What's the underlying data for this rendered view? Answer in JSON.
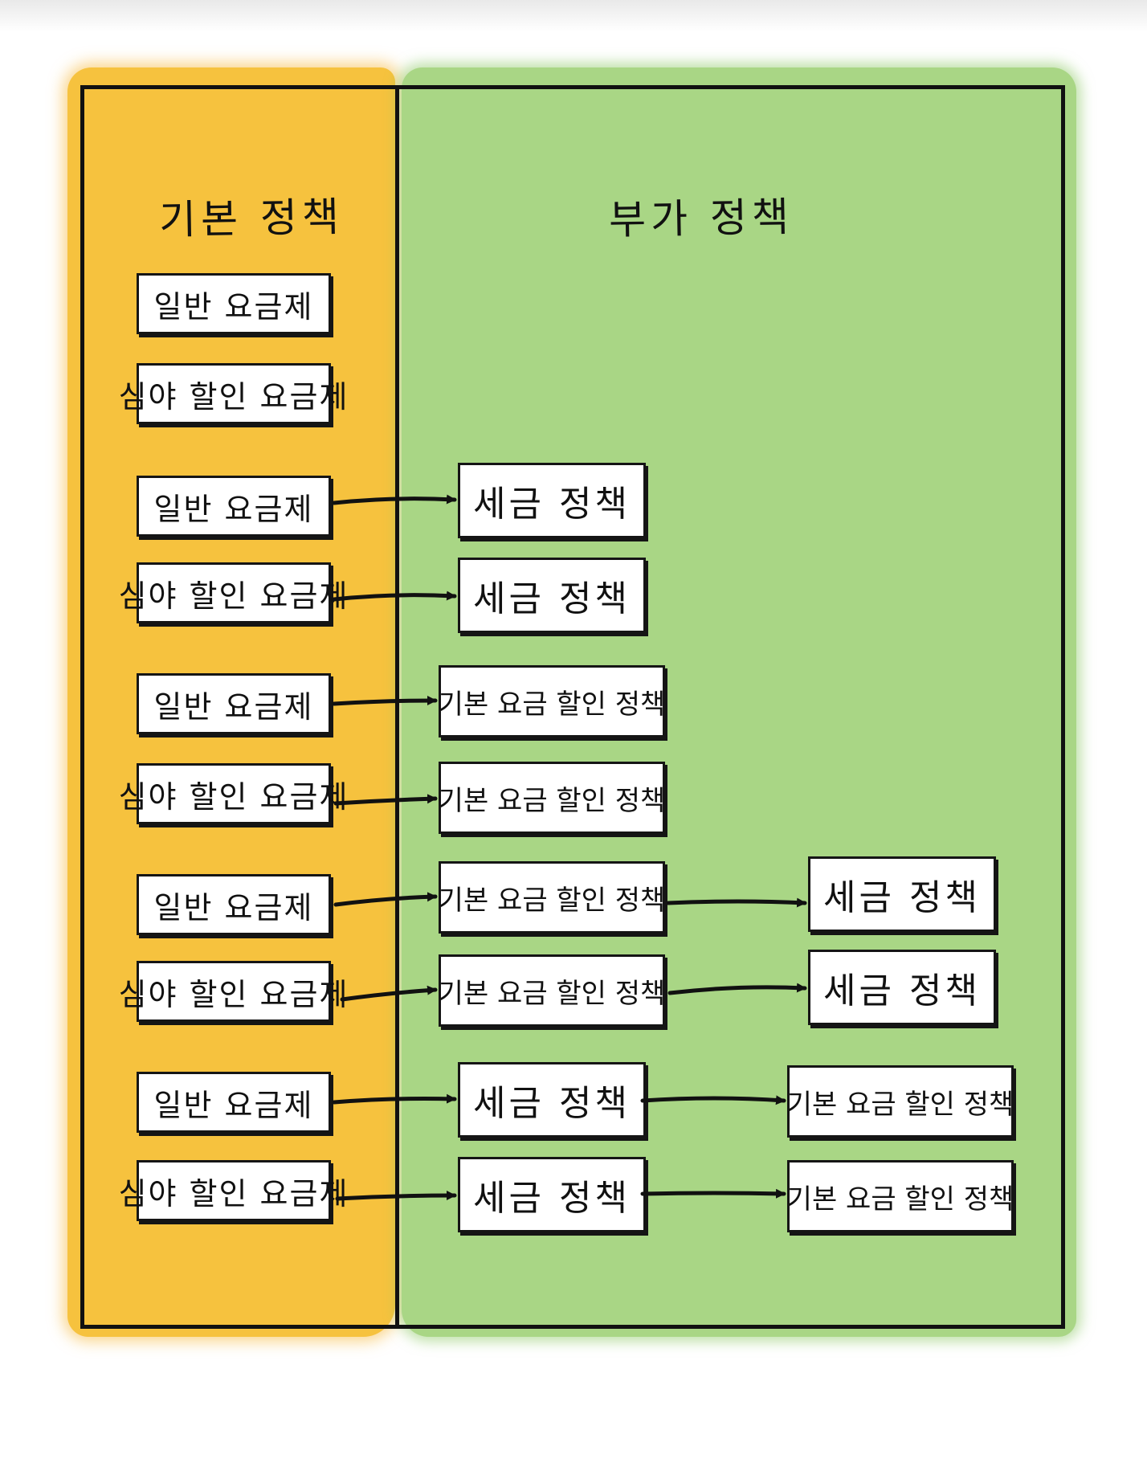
{
  "columns": {
    "basic_title": "기본 정책",
    "addon_title": "부가 정책"
  },
  "labels": {
    "regular_plan": "일반 요금제",
    "night_plan": "심야 할인 요금제",
    "tax_policy": "세금 정책",
    "basic_discount_policy": "기본 요금 할인 정책"
  },
  "colors": {
    "basic_wash": "#f6c23e",
    "addon_wash": "#a9d685",
    "ink": "#111111"
  }
}
